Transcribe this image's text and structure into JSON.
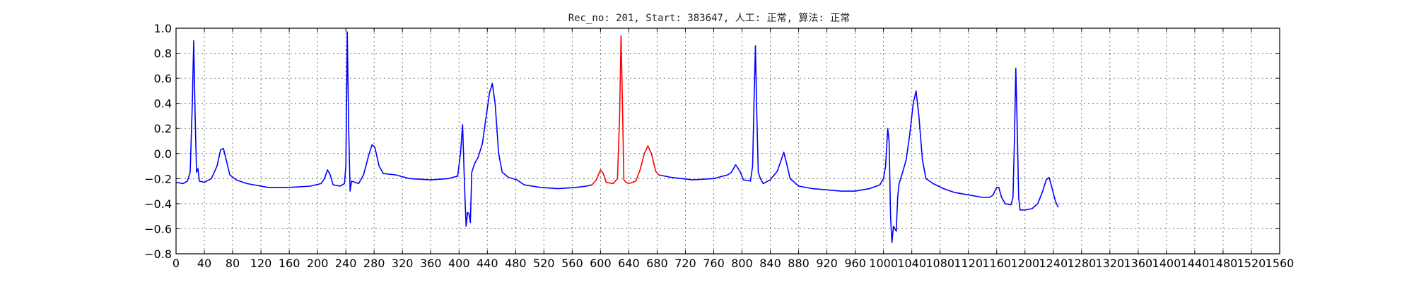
{
  "chart_data": {
    "type": "line",
    "title": "Rec_no: 201, Start: 383647, 人工: 正常, 算法: 正常",
    "xlabel": "",
    "ylabel": "",
    "xlim": [
      0,
      1560
    ],
    "ylim": [
      -0.8,
      1.0
    ],
    "grid": true,
    "yticks": [
      -0.8,
      -0.6,
      -0.4,
      -0.2,
      0.0,
      0.2,
      0.4,
      0.6,
      0.8,
      1.0
    ],
    "ytick_labels": [
      "−0.8",
      "−0.6",
      "−0.4",
      "−0.2",
      "0.0",
      "0.2",
      "0.4",
      "0.6",
      "0.8",
      "1.0"
    ],
    "xticks": [
      0,
      40,
      80,
      120,
      160,
      200,
      240,
      280,
      320,
      360,
      400,
      440,
      480,
      520,
      560,
      600,
      640,
      680,
      720,
      760,
      800,
      840,
      880,
      920,
      960,
      1000,
      1040,
      1080,
      1120,
      1160,
      1200,
      1240,
      1280,
      1320,
      1360,
      1400,
      1440,
      1480,
      1520,
      1560
    ],
    "xtick_labels": [
      "0",
      "40",
      "80",
      "120",
      "160",
      "200",
      "240",
      "280",
      "320",
      "360",
      "400",
      "440",
      "480",
      "520",
      "560",
      "600",
      "640",
      "680",
      "720",
      "760",
      "800",
      "840",
      "880",
      "920",
      "960",
      "1000",
      "1040",
      "1080",
      "1120",
      "1160",
      "1200",
      "1240",
      "1280",
      "1320",
      "1360",
      "1400",
      "1440",
      "1480",
      "1520",
      "1560"
    ],
    "series": [
      {
        "color": "#0000ff",
        "points": [
          [
            0,
            -0.23
          ],
          [
            10,
            -0.24
          ],
          [
            16,
            -0.22
          ],
          [
            20,
            -0.15
          ],
          [
            23,
            0.4
          ],
          [
            25,
            0.9
          ],
          [
            27,
            0.3
          ],
          [
            29,
            -0.15
          ],
          [
            31,
            -0.12
          ],
          [
            33,
            -0.22
          ],
          [
            40,
            -0.23
          ],
          [
            50,
            -0.2
          ],
          [
            58,
            -0.1
          ],
          [
            63,
            0.03
          ],
          [
            67,
            0.04
          ],
          [
            71,
            -0.05
          ],
          [
            76,
            -0.17
          ],
          [
            85,
            -0.21
          ],
          [
            100,
            -0.24
          ],
          [
            130,
            -0.27
          ],
          [
            160,
            -0.27
          ],
          [
            190,
            -0.26
          ],
          [
            205,
            -0.24
          ],
          [
            210,
            -0.2
          ],
          [
            214,
            -0.13
          ],
          [
            218,
            -0.17
          ],
          [
            222,
            -0.25
          ],
          [
            232,
            -0.26
          ],
          [
            238,
            -0.24
          ],
          [
            240,
            -0.1
          ],
          [
            242,
            0.97
          ],
          [
            244,
            0.2
          ],
          [
            246,
            -0.3
          ],
          [
            248,
            -0.22
          ],
          [
            258,
            -0.24
          ],
          [
            265,
            -0.17
          ],
          [
            272,
            -0.02
          ],
          [
            277,
            0.07
          ],
          [
            281,
            0.05
          ],
          [
            287,
            -0.1
          ],
          [
            293,
            -0.16
          ],
          [
            310,
            -0.17
          ],
          [
            330,
            -0.2
          ],
          [
            360,
            -0.21
          ],
          [
            385,
            -0.2
          ],
          [
            398,
            -0.18
          ],
          [
            402,
            0.0
          ],
          [
            405,
            0.23
          ],
          [
            408,
            -0.3
          ],
          [
            410,
            -0.58
          ],
          [
            412,
            -0.47
          ],
          [
            414,
            -0.48
          ],
          [
            416,
            -0.55
          ],
          [
            418,
            -0.15
          ],
          [
            422,
            -0.08
          ],
          [
            427,
            -0.03
          ],
          [
            433,
            0.08
          ],
          [
            438,
            0.28
          ],
          [
            443,
            0.48
          ],
          [
            447,
            0.56
          ],
          [
            451,
            0.4
          ],
          [
            456,
            0.0
          ],
          [
            461,
            -0.15
          ],
          [
            470,
            -0.19
          ],
          [
            482,
            -0.21
          ],
          [
            492,
            -0.25
          ],
          [
            515,
            -0.27
          ],
          [
            540,
            -0.28
          ],
          [
            565,
            -0.27
          ],
          [
            580,
            -0.26
          ],
          [
            588,
            -0.25
          ]
        ]
      },
      {
        "color": "#ff0000",
        "points": [
          [
            588,
            -0.25
          ],
          [
            594,
            -0.21
          ],
          [
            600,
            -0.13
          ],
          [
            604,
            -0.16
          ],
          [
            608,
            -0.23
          ],
          [
            618,
            -0.24
          ],
          [
            624,
            -0.2
          ],
          [
            627,
            0.3
          ],
          [
            629,
            0.94
          ],
          [
            631,
            0.4
          ],
          [
            633,
            -0.21
          ],
          [
            636,
            -0.23
          ],
          [
            640,
            -0.24
          ],
          [
            650,
            -0.22
          ],
          [
            656,
            -0.13
          ],
          [
            662,
            0.0
          ],
          [
            667,
            0.06
          ],
          [
            672,
            0.0
          ],
          [
            678,
            -0.14
          ],
          [
            682,
            -0.17
          ]
        ]
      },
      {
        "color": "#0000ff",
        "points": [
          [
            682,
            -0.17
          ],
          [
            700,
            -0.19
          ],
          [
            730,
            -0.21
          ],
          [
            760,
            -0.2
          ],
          [
            780,
            -0.17
          ],
          [
            785,
            -0.15
          ],
          [
            791,
            -0.09
          ],
          [
            797,
            -0.14
          ],
          [
            802,
            -0.21
          ],
          [
            812,
            -0.22
          ],
          [
            815,
            -0.1
          ],
          [
            817,
            0.4
          ],
          [
            819,
            0.86
          ],
          [
            821,
            0.3
          ],
          [
            823,
            -0.15
          ],
          [
            826,
            -0.2
          ],
          [
            830,
            -0.24
          ],
          [
            840,
            -0.21
          ],
          [
            850,
            -0.14
          ],
          [
            855,
            -0.06
          ],
          [
            859,
            0.01
          ],
          [
            863,
            -0.08
          ],
          [
            868,
            -0.2
          ],
          [
            880,
            -0.26
          ],
          [
            900,
            -0.28
          ],
          [
            920,
            -0.29
          ],
          [
            940,
            -0.3
          ],
          [
            960,
            -0.3
          ],
          [
            980,
            -0.28
          ],
          [
            995,
            -0.25
          ],
          [
            1000,
            -0.2
          ],
          [
            1003,
            -0.1
          ],
          [
            1006,
            0.2
          ],
          [
            1008,
            0.1
          ],
          [
            1010,
            -0.5
          ],
          [
            1012,
            -0.71
          ],
          [
            1014,
            -0.58
          ],
          [
            1018,
            -0.62
          ],
          [
            1020,
            -0.35
          ],
          [
            1022,
            -0.24
          ],
          [
            1027,
            -0.15
          ],
          [
            1032,
            -0.05
          ],
          [
            1037,
            0.15
          ],
          [
            1042,
            0.4
          ],
          [
            1046,
            0.5
          ],
          [
            1050,
            0.3
          ],
          [
            1055,
            -0.05
          ],
          [
            1060,
            -0.2
          ],
          [
            1070,
            -0.24
          ],
          [
            1085,
            -0.28
          ],
          [
            1100,
            -0.31
          ],
          [
            1120,
            -0.33
          ],
          [
            1140,
            -0.35
          ],
          [
            1150,
            -0.35
          ],
          [
            1155,
            -0.33
          ],
          [
            1160,
            -0.27
          ],
          [
            1163,
            -0.27
          ],
          [
            1167,
            -0.35
          ],
          [
            1172,
            -0.4
          ],
          [
            1180,
            -0.41
          ],
          [
            1183,
            -0.35
          ],
          [
            1185,
            0.1
          ],
          [
            1187,
            0.68
          ],
          [
            1189,
            0.2
          ],
          [
            1191,
            -0.35
          ],
          [
            1193,
            -0.45
          ],
          [
            1200,
            -0.45
          ],
          [
            1210,
            -0.44
          ],
          [
            1218,
            -0.4
          ],
          [
            1225,
            -0.3
          ],
          [
            1230,
            -0.21
          ],
          [
            1234,
            -0.19
          ],
          [
            1238,
            -0.27
          ],
          [
            1243,
            -0.38
          ],
          [
            1247,
            -0.43
          ]
        ]
      }
    ]
  }
}
